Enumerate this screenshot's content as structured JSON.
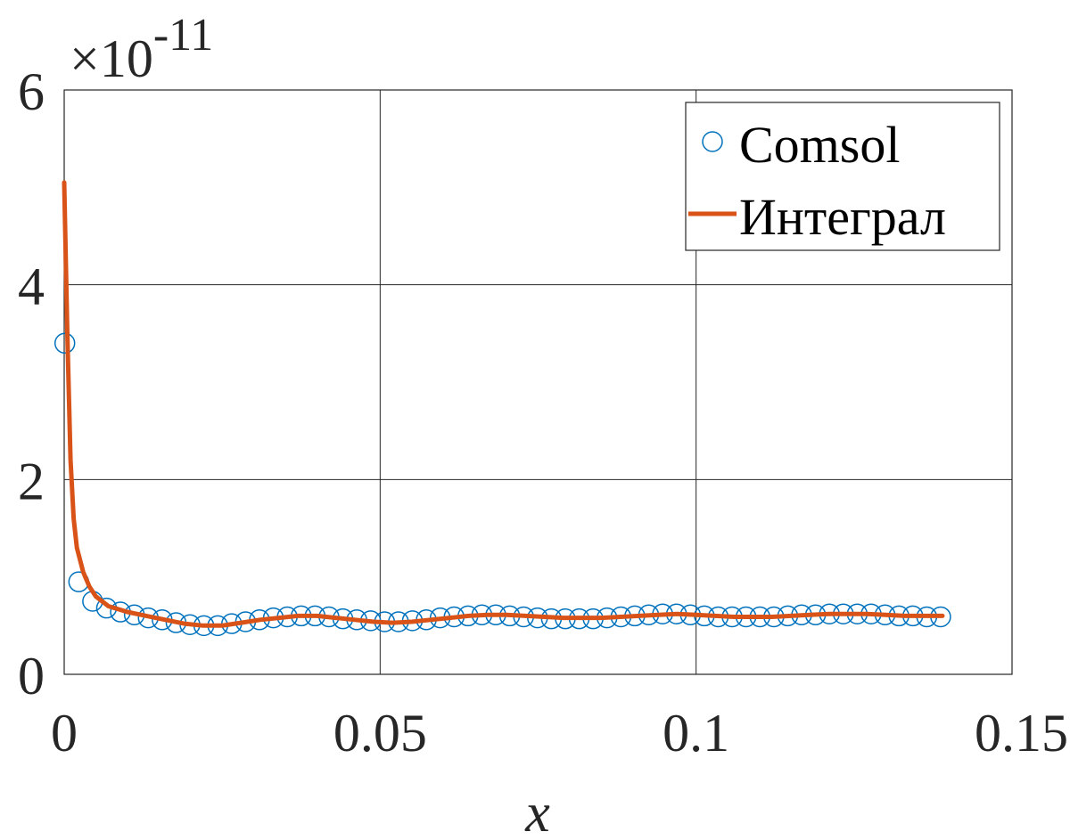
{
  "chart_data": {
    "type": "line",
    "xlabel": "x",
    "exponent_label": "×10",
    "exponent_power": "-11",
    "xlim": [
      0,
      0.15
    ],
    "ylim": [
      0,
      6
    ],
    "xticks": [
      0,
      0.05,
      0.1,
      0.15
    ],
    "xtick_labels": [
      "0",
      "0.05",
      "0.1",
      "0.15"
    ],
    "yticks": [
      0,
      2,
      4,
      6
    ],
    "ytick_labels": [
      "0",
      "2",
      "4",
      "6"
    ],
    "grid": true,
    "legend_position": "top-right",
    "series": [
      {
        "name": "Comsol",
        "kind": "scatter",
        "marker": "circle-open",
        "color": "#0072BD",
        "x": [
          0.0001,
          0.0023,
          0.0045,
          0.0067,
          0.0089,
          0.0111,
          0.0133,
          0.0155,
          0.0177,
          0.0199,
          0.0221,
          0.0243,
          0.0265,
          0.0287,
          0.0309,
          0.0331,
          0.0353,
          0.0375,
          0.0397,
          0.0419,
          0.0441,
          0.0463,
          0.0485,
          0.0507,
          0.0529,
          0.0551,
          0.0573,
          0.0595,
          0.0617,
          0.0639,
          0.0661,
          0.0683,
          0.0705,
          0.0727,
          0.0749,
          0.0771,
          0.0793,
          0.0815,
          0.0837,
          0.0859,
          0.0881,
          0.0903,
          0.0925,
          0.0947,
          0.0969,
          0.0991,
          0.1013,
          0.1035,
          0.1057,
          0.1079,
          0.1101,
          0.1123,
          0.1145,
          0.1167,
          0.1189,
          0.1211,
          0.1233,
          0.1255,
          0.1277,
          0.1299,
          0.1321,
          0.1343,
          0.1365,
          0.1387
        ],
        "y": [
          3.4,
          0.95,
          0.75,
          0.68,
          0.64,
          0.61,
          0.58,
          0.56,
          0.53,
          0.51,
          0.5,
          0.5,
          0.52,
          0.54,
          0.56,
          0.58,
          0.59,
          0.6,
          0.6,
          0.59,
          0.57,
          0.56,
          0.55,
          0.54,
          0.54,
          0.55,
          0.56,
          0.58,
          0.59,
          0.6,
          0.61,
          0.61,
          0.6,
          0.59,
          0.58,
          0.57,
          0.57,
          0.57,
          0.57,
          0.58,
          0.59,
          0.6,
          0.61,
          0.62,
          0.62,
          0.61,
          0.6,
          0.59,
          0.59,
          0.59,
          0.59,
          0.59,
          0.6,
          0.61,
          0.61,
          0.62,
          0.62,
          0.62,
          0.62,
          0.61,
          0.6,
          0.6,
          0.59,
          0.59
        ]
      },
      {
        "name": "Интеграл",
        "kind": "line",
        "color": "#D95319",
        "x": [
          0.0,
          0.0005,
          0.001,
          0.0015,
          0.002,
          0.003,
          0.004,
          0.005,
          0.007,
          0.01,
          0.013,
          0.016,
          0.019,
          0.022,
          0.025,
          0.028,
          0.031,
          0.034,
          0.037,
          0.04,
          0.043,
          0.046,
          0.049,
          0.052,
          0.055,
          0.058,
          0.061,
          0.064,
          0.067,
          0.07,
          0.073,
          0.076,
          0.079,
          0.082,
          0.085,
          0.088,
          0.091,
          0.094,
          0.097,
          0.1,
          0.103,
          0.106,
          0.109,
          0.112,
          0.115,
          0.118,
          0.121,
          0.124,
          0.127,
          0.13,
          0.133,
          0.136,
          0.139
        ],
        "y": [
          5.05,
          3.5,
          2.2,
          1.6,
          1.3,
          1.05,
          0.9,
          0.8,
          0.7,
          0.64,
          0.6,
          0.56,
          0.52,
          0.5,
          0.5,
          0.53,
          0.56,
          0.58,
          0.6,
          0.6,
          0.58,
          0.56,
          0.54,
          0.53,
          0.54,
          0.56,
          0.58,
          0.6,
          0.61,
          0.61,
          0.6,
          0.59,
          0.58,
          0.58,
          0.58,
          0.59,
          0.6,
          0.61,
          0.62,
          0.61,
          0.6,
          0.59,
          0.59,
          0.59,
          0.6,
          0.61,
          0.62,
          0.62,
          0.62,
          0.61,
          0.6,
          0.6,
          0.6
        ]
      }
    ]
  }
}
